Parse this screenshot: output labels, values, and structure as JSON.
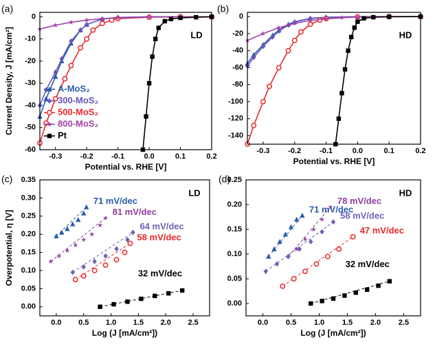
{
  "chart_data": [
    {
      "type": "line",
      "panel_label": "(a)",
      "annotation": "LD",
      "xlabel": "Potential vs. RHE [V]",
      "ylabel": "Current Density, J [mA/cm²]",
      "xlim": [
        -0.35,
        0.2
      ],
      "ylim": [
        -60,
        2
      ],
      "xticks": [
        -0.3,
        -0.2,
        -0.1,
        {
          "value": 0,
          "label": "0.0"
        },
        0.1,
        0.2
      ],
      "yticks": [
        -60,
        -50,
        -40,
        -30,
        -20,
        -10,
        0
      ],
      "legend": "left",
      "series": [
        {
          "name": "A-MoS₂",
          "color": "#2a5caa",
          "marker": "triangle",
          "x": [
            -0.35,
            -0.33,
            -0.3,
            -0.28,
            -0.25,
            -0.22,
            -0.2,
            -0.15,
            -0.1,
            0,
            0.1,
            0.2
          ],
          "values": [
            -45,
            -37,
            -27,
            -20,
            -12,
            -6,
            -3.5,
            -1,
            -0.3,
            0,
            0,
            0
          ]
        },
        {
          "name": "300-MoS₂",
          "color": "#6655bb",
          "marker": "diamond",
          "x": [
            -0.35,
            -0.33,
            -0.3,
            -0.28,
            -0.25,
            -0.22,
            -0.2,
            -0.15,
            -0.1,
            0,
            0.1,
            0.2
          ],
          "values": [
            -40,
            -33,
            -25,
            -19,
            -11,
            -6,
            -3.5,
            -1,
            -0.3,
            0,
            0,
            0
          ]
        },
        {
          "name": "500-MoS₂",
          "color": "#e8282a",
          "marker": "circle",
          "x": [
            -0.35,
            -0.33,
            -0.3,
            -0.27,
            -0.25,
            -0.22,
            -0.2,
            -0.18,
            -0.15,
            -0.12,
            -0.1,
            0,
            0.1,
            0.2
          ],
          "values": [
            -57,
            -48,
            -37,
            -28,
            -22,
            -14,
            -10,
            -6,
            -3,
            -1.5,
            -0.8,
            -0.2,
            0,
            0
          ]
        },
        {
          "name": "800-MoS₂",
          "color": "#a040a8",
          "marker": "star",
          "x": [
            -0.35,
            -0.3,
            -0.25,
            -0.2,
            -0.15,
            -0.1,
            0,
            0.1,
            0.2
          ],
          "values": [
            -5.5,
            -3.8,
            -2.5,
            -1.5,
            -0.9,
            -0.5,
            -0.1,
            0,
            0
          ]
        },
        {
          "name": "Pt",
          "color": "#000000",
          "marker": "square",
          "x": [
            -0.02,
            -0.01,
            0,
            0.01,
            0.02,
            0.03,
            0.05,
            0.07,
            0.1,
            0.15,
            0.2
          ],
          "values": [
            -60,
            -45,
            -30,
            -18,
            -10,
            -5,
            -2,
            -1,
            -0.5,
            -0.2,
            0
          ]
        }
      ]
    },
    {
      "type": "line",
      "panel_label": "(b)",
      "annotation": "HD",
      "xlabel": "Potential vs. RHE [V]",
      "xlim": [
        -0.35,
        0.2
      ],
      "ylim": [
        -150,
        5
      ],
      "xticks": [
        -0.3,
        -0.2,
        -0.1,
        {
          "value": 0,
          "label": "0.0"
        },
        0.1,
        0.2
      ],
      "yticks": [
        -140,
        -120,
        -100,
        -80,
        -60,
        -40,
        -20,
        0
      ],
      "series": [
        {
          "color": "#2a5caa",
          "marker": "triangle",
          "x": [
            -0.35,
            -0.33,
            -0.3,
            -0.27,
            -0.25,
            -0.22,
            -0.2,
            -0.15,
            -0.1,
            0,
            0.1,
            0.2
          ],
          "values": [
            -55,
            -45,
            -33,
            -22,
            -16,
            -9,
            -6,
            -2,
            -0.7,
            -0.1,
            0,
            0
          ]
        },
        {
          "color": "#6655bb",
          "marker": "diamond",
          "x": [
            -0.35,
            -0.33,
            -0.3,
            -0.27,
            -0.25,
            -0.22,
            -0.2,
            -0.15,
            -0.1,
            0,
            0.1,
            0.2
          ],
          "values": [
            -58,
            -48,
            -35,
            -24,
            -17,
            -10,
            -6.5,
            -2.2,
            -0.8,
            0,
            0,
            0
          ]
        },
        {
          "color": "#e8282a",
          "marker": "circle",
          "x": [
            -0.35,
            -0.33,
            -0.3,
            -0.28,
            -0.25,
            -0.22,
            -0.2,
            -0.18,
            -0.15,
            -0.12,
            -0.1,
            0,
            0.1,
            0.2
          ],
          "values": [
            -150,
            -128,
            -100,
            -82,
            -60,
            -40,
            -28,
            -18,
            -9,
            -4,
            -2.5,
            -0.3,
            0,
            0
          ]
        },
        {
          "color": "#a040a8",
          "marker": "star",
          "x": [
            -0.35,
            -0.3,
            -0.25,
            -0.2,
            -0.15,
            -0.1,
            -0.05,
            0,
            0.1,
            0.2
          ],
          "values": [
            -28,
            -20,
            -13,
            -8,
            -4.5,
            -2.5,
            -1.2,
            -0.5,
            0,
            0
          ]
        },
        {
          "color": "#000000",
          "marker": "square",
          "x": [
            -0.07,
            -0.06,
            -0.05,
            -0.04,
            -0.03,
            -0.02,
            -0.01,
            0,
            0.02,
            0.05,
            0.1,
            0.2
          ],
          "values": [
            -150,
            -120,
            -90,
            -62,
            -40,
            -24,
            -13,
            -6,
            -2,
            -0.7,
            -0.2,
            0
          ]
        }
      ]
    },
    {
      "type": "scatter",
      "panel_label": "(c)",
      "annotation": "LD",
      "xlabel": "Log (J [mA/cm²])",
      "ylabel": "Overpotential, η [V]",
      "xlim": [
        -0.3,
        2.8
      ],
      "ylim": [
        -0.025,
        0.35
      ],
      "xticks": [
        {
          "value": 0,
          "label": "0.0"
        },
        0.5,
        {
          "value": 1,
          "label": "1.0"
        },
        1.5,
        {
          "value": 2,
          "label": "2.0"
        },
        2.5
      ],
      "yticks": [
        {
          "value": 0,
          "label": "0.00"
        },
        0.05,
        {
          "value": 0.1,
          "label": "0.10"
        },
        0.15,
        {
          "value": 0.2,
          "label": "0.20"
        },
        0.25,
        {
          "value": 0.3,
          "label": "0.30"
        },
        0.35
      ],
      "series": [
        {
          "color": "#2a5caa",
          "marker": "triangle",
          "label": "71 mV/dec",
          "x": [
            0.0,
            0.1,
            0.2,
            0.3,
            0.4,
            0.5,
            0.55
          ],
          "values": [
            0.195,
            0.205,
            0.215,
            0.228,
            0.24,
            0.258,
            0.275
          ]
        },
        {
          "color": "#8e3fa0",
          "marker": "star",
          "label": "81 mV/dec",
          "x": [
            -0.1,
            0.05,
            0.2,
            0.35,
            0.5,
            0.65,
            0.8,
            0.9
          ],
          "values": [
            0.125,
            0.14,
            0.155,
            0.17,
            0.185,
            0.2,
            0.225,
            0.245
          ]
        },
        {
          "color": "#6b63b5",
          "marker": "diamond",
          "label": "64 mV/dec",
          "x": [
            0.3,
            0.5,
            0.7,
            0.9,
            1.1,
            1.3,
            1.4
          ],
          "values": [
            0.095,
            0.11,
            0.125,
            0.14,
            0.16,
            0.185,
            0.205
          ]
        },
        {
          "color": "#e8282a",
          "marker": "circle",
          "label": "58 mV/dec",
          "x": [
            0.35,
            0.5,
            0.7,
            0.9,
            1.1,
            1.25,
            1.35
          ],
          "values": [
            0.075,
            0.085,
            0.1,
            0.115,
            0.13,
            0.15,
            0.175
          ]
        },
        {
          "color": "#000000",
          "marker": "square",
          "label": "32 mV/dec",
          "x": [
            0.8,
            1.05,
            1.3,
            1.55,
            1.8,
            2.05,
            2.3
          ],
          "values": [
            0.0,
            0.007,
            0.014,
            0.022,
            0.03,
            0.037,
            0.045
          ]
        }
      ]
    },
    {
      "type": "scatter",
      "panel_label": "(d)",
      "annotation": "HD",
      "xlabel": "Log (J [mA/cm²])",
      "xlim": [
        -0.3,
        2.8
      ],
      "ylim": [
        -0.025,
        0.25
      ],
      "xticks": [
        {
          "value": 0,
          "label": "0.0"
        },
        0.5,
        {
          "value": 1,
          "label": "1.0"
        },
        1.5,
        {
          "value": 2,
          "label": "2.0"
        },
        2.5
      ],
      "yticks": [
        {
          "value": 0,
          "label": "0.00"
        },
        0.05,
        {
          "value": 0.1,
          "label": "0.10"
        },
        0.15,
        {
          "value": 0.2,
          "label": "0.20"
        },
        0.25
      ],
      "series": [
        {
          "color": "#2a5caa",
          "marker": "triangle",
          "label": "71 mV/dec",
          "x": [
            0.1,
            0.2,
            0.3,
            0.4,
            0.5,
            0.6,
            0.7
          ],
          "values": [
            0.095,
            0.11,
            0.125,
            0.14,
            0.155,
            0.17,
            0.178
          ]
        },
        {
          "color": "#8e3fa0",
          "marker": "star",
          "label": "78 mV/dec",
          "x": [
            0.45,
            0.6,
            0.75,
            0.9,
            1.05,
            1.2
          ],
          "values": [
            0.095,
            0.11,
            0.13,
            0.15,
            0.17,
            0.195
          ]
        },
        {
          "color": "#6b63b5",
          "marker": "diamond",
          "label": "58 mV/dec",
          "x": [
            0.05,
            0.25,
            0.45,
            0.65,
            0.85,
            1.05,
            1.25
          ],
          "values": [
            0.065,
            0.08,
            0.095,
            0.11,
            0.125,
            0.145,
            0.165
          ]
        },
        {
          "color": "#e8282a",
          "marker": "circle",
          "label": "47 mV/dec",
          "x": [
            0.35,
            0.55,
            0.75,
            0.95,
            1.15,
            1.35,
            1.6
          ],
          "values": [
            0.035,
            0.05,
            0.065,
            0.08,
            0.095,
            0.11,
            0.135
          ]
        },
        {
          "color": "#000000",
          "marker": "square",
          "label": "32 mV/dec",
          "x": [
            0.85,
            1.05,
            1.25,
            1.45,
            1.65,
            1.85,
            2.05,
            2.25
          ],
          "values": [
            0.0,
            0.005,
            0.01,
            0.016,
            0.022,
            0.028,
            0.036,
            0.045
          ]
        }
      ]
    }
  ]
}
